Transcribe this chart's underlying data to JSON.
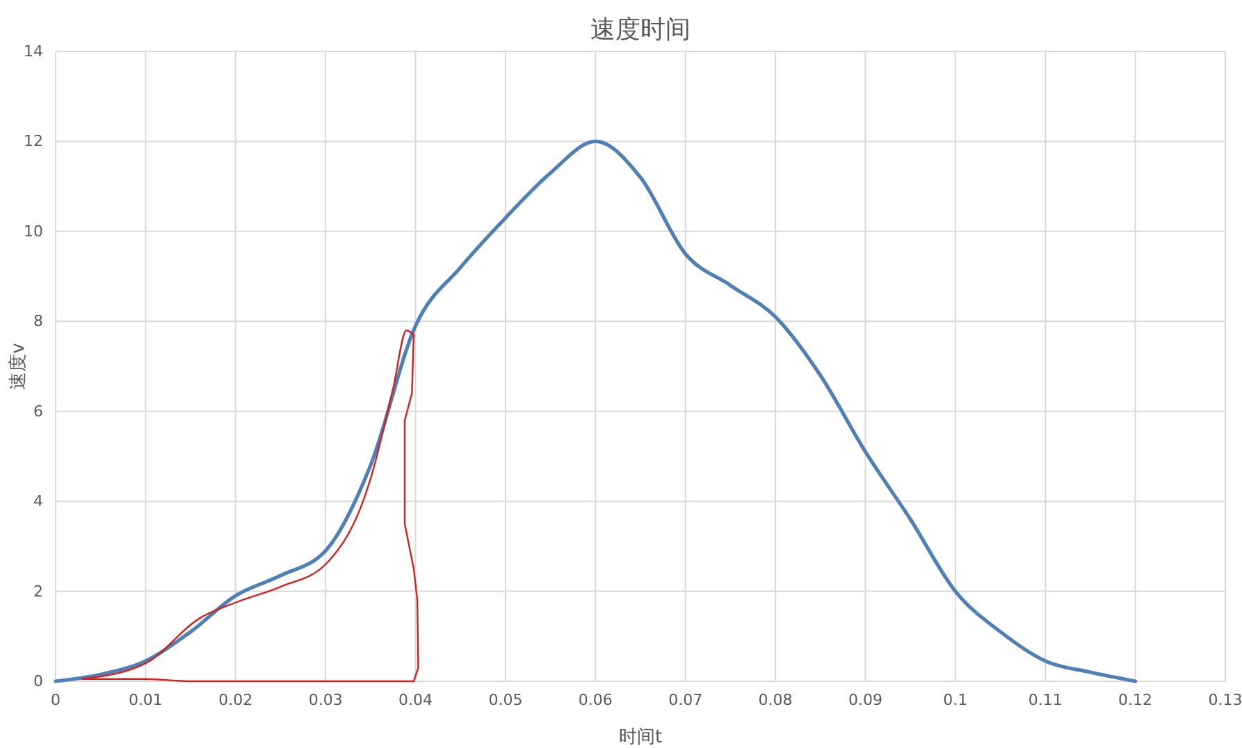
{
  "chart_data": {
    "type": "line",
    "title": "速度时间",
    "xlabel": "时间t",
    "ylabel": "速度v",
    "x": [
      0,
      0.005,
      0.01,
      0.015,
      0.02,
      0.025,
      0.03,
      0.035,
      0.04,
      0.045,
      0.05,
      0.055,
      0.06,
      0.065,
      0.07,
      0.075,
      0.08,
      0.085,
      0.09,
      0.095,
      0.1,
      0.105,
      0.11,
      0.115,
      0.12
    ],
    "series": [
      {
        "color": "#4f7fb5",
        "values": [
          0,
          0.15,
          0.45,
          1.1,
          1.9,
          2.35,
          2.9,
          4.8,
          7.9,
          9.2,
          10.3,
          11.3,
          12,
          11.2,
          9.5,
          8.8,
          8.1,
          6.8,
          5.1,
          3.6,
          2.0,
          1.1,
          0.45,
          0.2,
          0
        ]
      },
      {
        "color": "#d62020",
        "x": [
          0.003,
          0.01,
          0.016,
          0.02,
          0.025,
          0.03,
          0.035,
          0.0375,
          0.039,
          0.0398
        ],
        "values": [
          0.05,
          0.4,
          1.4,
          1.75,
          2.1,
          2.6,
          4.5,
          6.5,
          7.8,
          7.7
        ]
      },
      {
        "color": "#d62020",
        "x": [
          0.0398,
          0.0396,
          0.0388,
          0.0388,
          0.0398,
          0.0402,
          0.0403,
          0.0398
        ],
        "values": [
          7.7,
          6.4,
          5.8,
          3.5,
          2.5,
          1.8,
          0.3,
          0
        ]
      },
      {
        "color": "#d62020",
        "x": [
          0.003,
          0.01,
          0.015,
          0.039,
          0.0398
        ],
        "values": [
          0.05,
          0.05,
          0,
          0,
          0
        ]
      }
    ],
    "xlim": [
      0,
      0.13
    ],
    "xticks": [
      0,
      0.01,
      0.02,
      0.03,
      0.04,
      0.05,
      0.06,
      0.07,
      0.08,
      0.09,
      0.1,
      0.11,
      0.12,
      0.13
    ],
    "ylim": [
      0,
      14
    ],
    "yticks": [
      0,
      2,
      4,
      6,
      8,
      10,
      12,
      14
    ],
    "grid": true,
    "marker": "none",
    "line_style": "solid"
  }
}
